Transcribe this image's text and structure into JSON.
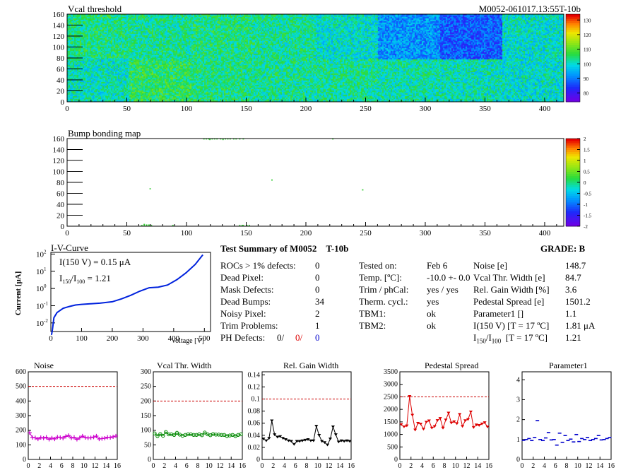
{
  "maps": [
    {
      "title": "Vcal threshold",
      "header_right": "M0052-061017.13:55T-10b",
      "xticks": [
        0,
        50,
        100,
        150,
        200,
        250,
        300,
        350,
        400
      ],
      "yticks": [
        0,
        20,
        40,
        60,
        80,
        100,
        120,
        140,
        160
      ],
      "xlim": [
        0,
        416
      ],
      "ylim": [
        0,
        160
      ],
      "palette_labels": [
        "80",
        "90",
        "100",
        "110",
        "120",
        "130"
      ],
      "palette_values": [
        80,
        90,
        100,
        110,
        120,
        130
      ],
      "zlim": [
        74,
        134
      ],
      "roc_levels": [
        [
          104,
          103,
          104,
          103,
          100,
          92,
          87,
          100
        ],
        [
          101,
          106,
          104,
          103,
          103,
          102,
          101,
          100
        ]
      ]
    },
    {
      "title": "Bump bonding map",
      "xticks": [
        0,
        50,
        100,
        150,
        200,
        250,
        300,
        350,
        400
      ],
      "yticks": [
        0,
        20,
        40,
        60,
        80,
        100,
        120,
        140,
        160
      ],
      "xlim": [
        0,
        416
      ],
      "ylim": [
        0,
        160
      ],
      "palette_labels": [
        "-2",
        "-1.5",
        "-1",
        "-0.5",
        "0",
        "0.5",
        "1",
        "1.5",
        "2"
      ],
      "palette_values": [
        -2,
        -1.5,
        -1,
        -0.5,
        0,
        0.5,
        1,
        1.5,
        2
      ],
      "zlim": [
        -2,
        2
      ],
      "dead_bumps": [
        [
          114,
          159
        ],
        [
          116,
          159
        ],
        [
          118,
          159
        ],
        [
          119,
          158
        ],
        [
          121,
          159
        ],
        [
          123,
          159
        ],
        [
          125,
          159
        ],
        [
          128,
          159
        ],
        [
          130,
          158
        ],
        [
          132,
          159
        ],
        [
          134,
          159
        ],
        [
          136,
          159
        ],
        [
          139,
          159
        ],
        [
          141,
          159
        ],
        [
          144,
          159
        ],
        [
          147,
          159
        ],
        [
          222,
          159
        ],
        [
          171,
          84
        ],
        [
          69,
          68
        ],
        [
          247,
          66
        ],
        [
          62,
          1
        ],
        [
          64,
          1
        ],
        [
          66,
          1
        ],
        [
          68,
          2
        ],
        [
          70,
          1
        ],
        [
          88,
          1
        ],
        [
          144,
          1
        ],
        [
          146,
          1
        ],
        [
          147,
          1
        ],
        [
          150,
          1
        ],
        [
          152,
          1
        ],
        [
          64,
          3
        ],
        [
          66,
          2
        ],
        [
          68,
          1
        ]
      ]
    }
  ],
  "iv_curve": {
    "title": "I-V-Curve",
    "ylabel": "Current [μA]",
    "xlabel": "Voltage [V]",
    "xticks": [
      0,
      100,
      200,
      300,
      400,
      500
    ],
    "xlim": [
      0,
      520
    ],
    "ylim_log10": [
      -2.5,
      2.1
    ],
    "annotation_1": "I(150 V) = 0.15 μA",
    "annotation_2_main": "I",
    "annotation_2_sub1": "150",
    "annotation_2_mid": "/I",
    "annotation_2_sub2": "100",
    "annotation_2_value": "=  1.21",
    "points": [
      [
        2,
        0.002
      ],
      [
        5,
        0.004
      ],
      [
        10,
        0.02
      ],
      [
        20,
        0.04
      ],
      [
        40,
        0.07
      ],
      [
        60,
        0.09
      ],
      [
        80,
        0.11
      ],
      [
        100,
        0.12
      ],
      [
        130,
        0.13
      ],
      [
        160,
        0.14
      ],
      [
        200,
        0.17
      ],
      [
        230,
        0.25
      ],
      [
        260,
        0.4
      ],
      [
        290,
        0.7
      ],
      [
        320,
        1.1
      ],
      [
        350,
        1.2
      ],
      [
        380,
        1.6
      ],
      [
        410,
        3.2
      ],
      [
        440,
        8
      ],
      [
        470,
        25
      ],
      [
        495,
        90
      ]
    ]
  },
  "summary": {
    "title": "Test Summary of M0052",
    "tag": "T-10b",
    "grade_label": "GRADE:  B",
    "rows_left": [
      {
        "label": "ROCs > 1% defects:",
        "value": "0"
      },
      {
        "label": "Dead Pixel:",
        "value": "0"
      },
      {
        "label": "Mask Defects:",
        "value": "0"
      },
      {
        "label": "Dead Bumps:",
        "value": "34"
      },
      {
        "label": "Noisy Pixel:",
        "value": "2"
      },
      {
        "label": "Trim Problems:",
        "value": "1"
      }
    ],
    "ph_label": "PH Defects:",
    "ph_values": [
      "0/",
      "0/",
      "0"
    ],
    "rows_mid": [
      {
        "label": "Tested on:",
        "value": "Feb 6"
      },
      {
        "label": "Temp. [ºC]:",
        "value": "-10.0 +- 0.0"
      },
      {
        "label": "Trim / phCal:",
        "value": "yes / yes"
      },
      {
        "label": "Therm. cycl.:",
        "value": "yes"
      },
      {
        "label": "TBM1:",
        "value": "ok"
      },
      {
        "label": "TBM2:",
        "value": "ok"
      }
    ],
    "rows_right": [
      {
        "label": "Noise [e]",
        "value": "148.7"
      },
      {
        "label": "Vcal Thr. Width [e]",
        "value": "84.7"
      },
      {
        "label": "Rel. Gain Width [%]",
        "value": "3.6"
      },
      {
        "label": "Pedestal Spread [e]",
        "value": "1501.2"
      },
      {
        "label": "Parameter1 []",
        "value": "1.1"
      },
      {
        "label": "I(150 V) [T = 17 ºC]",
        "value": "1.81 μA"
      }
    ],
    "ratio_row": {
      "main": "I",
      "sub1": "150",
      "mid": "/I",
      "sub2": "100",
      "tail": "  [T = 17 ºC]",
      "value": "1.21"
    }
  },
  "small_charts": [
    {
      "title": "Noise",
      "color": "#cc00cc",
      "marker": "plus",
      "yticks": [
        0,
        100,
        200,
        300,
        400,
        500,
        600
      ],
      "ylim": [
        0,
        600
      ],
      "ref": 500,
      "values": [
        183,
        150,
        148,
        140,
        150,
        146,
        152,
        138,
        147,
        140,
        153,
        150,
        146,
        158,
        164,
        147,
        151,
        138,
        148,
        160,
        150,
        147,
        149,
        153,
        160,
        140,
        143,
        145,
        152,
        150,
        155,
        160
      ]
    },
    {
      "title": "Vcal Thr. Width",
      "color": "#008800",
      "marker": "circle",
      "yticks": [
        0,
        50,
        100,
        150,
        200,
        250,
        300
      ],
      "ylim": [
        0,
        300
      ],
      "ref": 200,
      "values": [
        89,
        80,
        87,
        81,
        94,
        86,
        86,
        84,
        91,
        85,
        81,
        84,
        86,
        86,
        84,
        84,
        86,
        83,
        92,
        86,
        83,
        87,
        85,
        85,
        84,
        84,
        80,
        82,
        84,
        80,
        84,
        86
      ]
    },
    {
      "title": "Rel. Gain Width",
      "color": "#000000",
      "marker": "triangle",
      "yticks": [
        0,
        0.02,
        0.04,
        0.06,
        0.08,
        0.1,
        0.12,
        0.14
      ],
      "ylim": [
        0,
        0.145
      ],
      "ref": 0.1,
      "values": [
        0.034,
        0.031,
        0.035,
        0.064,
        0.041,
        0.037,
        0.038,
        0.035,
        0.033,
        0.031,
        0.03,
        0.025,
        0.03,
        0.03,
        0.031,
        0.032,
        0.033,
        0.031,
        0.031,
        0.055,
        0.04,
        0.03,
        0.028,
        0.024,
        0.034,
        0.054,
        0.041,
        0.029,
        0.031,
        0.03,
        0.031,
        0.03
      ]
    },
    {
      "title": "Pedestal Spread",
      "color": "#dd0000",
      "marker": "triangle",
      "yticks": [
        0,
        500,
        1000,
        1500,
        2000,
        2500,
        3000,
        3500
      ],
      "ylim": [
        0,
        3500
      ],
      "ref": 2500,
      "values": [
        1395,
        1305,
        1344,
        2518,
        1768,
        1177,
        1444,
        1415,
        1212,
        1491,
        1543,
        1256,
        1318,
        1555,
        1640,
        1253,
        1580,
        1853,
        1460,
        1507,
        1430,
        1800,
        1320,
        1550,
        1600,
        1900,
        1280,
        1380,
        1360,
        1420,
        1470,
        1300
      ]
    },
    {
      "title": "Parameter1",
      "color": "#0000cc",
      "marker": "hbar",
      "yticks": [
        0,
        1,
        2,
        3,
        4
      ],
      "ylim": [
        0,
        4.4
      ],
      "ref": null,
      "values": [
        0.96,
        1.0,
        1.05,
        0.95,
        1.1,
        1.95,
        1.0,
        0.95,
        1.08,
        1.35,
        0.98,
        1.0,
        0.72,
        1.32,
        0.86,
        1.2,
        0.95,
        1.02,
        0.88,
        1.25,
        0.9,
        1.05,
        1.0,
        1.1,
        0.95,
        1.0,
        1.05,
        1.2,
        0.98,
        1.0,
        1.05,
        1.1
      ]
    }
  ],
  "small_xticks": [
    0,
    2,
    4,
    6,
    8,
    10,
    12,
    14,
    16
  ]
}
